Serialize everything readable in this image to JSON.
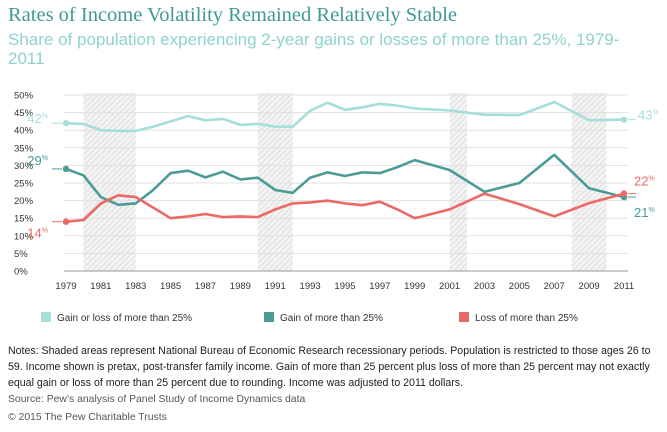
{
  "title": "Rates of Income Volatility Remained Relatively Stable",
  "subtitle": "Share of population experiencing 2-year gains or losses of more than 25%, 1979-2011",
  "notes": "Notes: Shaded areas represent National Bureau of Economic Research recessionary periods. Population is restricted to those ages 26 to 59. Income shown is pretax, post-transfer family income. Gain of more than 25 percent plus loss of more than 25 percent may not exactly equal gain or loss of more than 25 percent due to rounding. Income was adjusted to 2011 dollars.",
  "source": "Source: Pew’s analysis of Panel Study of Income Dynamics data",
  "copyright": "© 2015 The Pew Charitable Trusts",
  "chart_data": {
    "type": "line",
    "x": [
      1979,
      1980,
      1981,
      1982,
      1983,
      1984,
      1985,
      1986,
      1987,
      1988,
      1989,
      1990,
      1991,
      1992,
      1993,
      1994,
      1995,
      1996,
      1997,
      1998,
      1999,
      2001,
      2003,
      2005,
      2007,
      2009,
      2011
    ],
    "series": [
      {
        "name": "Gain or loss of more than 25%",
        "color": "#a6ded9",
        "values": [
          42,
          41.8,
          40,
          39.8,
          39.8,
          41,
          42.5,
          44,
          42.8,
          43.2,
          41.5,
          41.8,
          41,
          41,
          45.5,
          47.8,
          45.8,
          46.5,
          47.5,
          47,
          46.2,
          45.6,
          44.4,
          44.3,
          48,
          42.8,
          43
        ]
      },
      {
        "name": "Gain of more than 25%",
        "color": "#4b9b97",
        "values": [
          29,
          27.2,
          21,
          18.8,
          19.2,
          23,
          27.8,
          28.5,
          26.6,
          28.2,
          26,
          26.5,
          23,
          22.2,
          26.5,
          28,
          27,
          28,
          27.8,
          29.5,
          31.5,
          28.7,
          22.5,
          25,
          33,
          23.5,
          21
        ]
      },
      {
        "name": "Loss of more than 25%",
        "color": "#ec6a65",
        "values": [
          14,
          14.5,
          19.2,
          21.5,
          21,
          18,
          15,
          15.5,
          16.2,
          15.3,
          15.5,
          15.3,
          17.5,
          19.2,
          19.5,
          20,
          19.2,
          18.7,
          19.7,
          17.5,
          15,
          17.5,
          22,
          19,
          15.5,
          19.3,
          22
        ]
      }
    ],
    "y_ticks": [
      "0%",
      "5%",
      "10%",
      "15%",
      "20%",
      "25%",
      "30%",
      "35%",
      "40%",
      "45%",
      "50%"
    ],
    "x_ticks": [
      "1979",
      "1981",
      "1983",
      "1985",
      "1987",
      "1989",
      "1991",
      "1993",
      "1995",
      "1997",
      "1999",
      "2001",
      "2003",
      "2005",
      "2007",
      "2009",
      "2011"
    ],
    "ylim": [
      0,
      50
    ],
    "recessions": [
      [
        1980,
        1980
      ],
      [
        1981,
        1982
      ],
      [
        1990,
        1991
      ],
      [
        2001,
        2001
      ],
      [
        2008,
        2009
      ]
    ],
    "annotations": [
      {
        "text": "42",
        "sup": "%",
        "series": 0,
        "end": "start"
      },
      {
        "text": "43",
        "sup": "%",
        "series": 0,
        "end": "end"
      },
      {
        "text": "29",
        "sup": "%",
        "series": 1,
        "end": "start"
      },
      {
        "text": "21",
        "sup": "%",
        "series": 1,
        "end": "end"
      },
      {
        "text": "14",
        "sup": "%",
        "series": 2,
        "end": "start"
      },
      {
        "text": "22",
        "sup": "%",
        "series": 2,
        "end": "end"
      }
    ],
    "grid": true,
    "legend_position": "bottom"
  }
}
